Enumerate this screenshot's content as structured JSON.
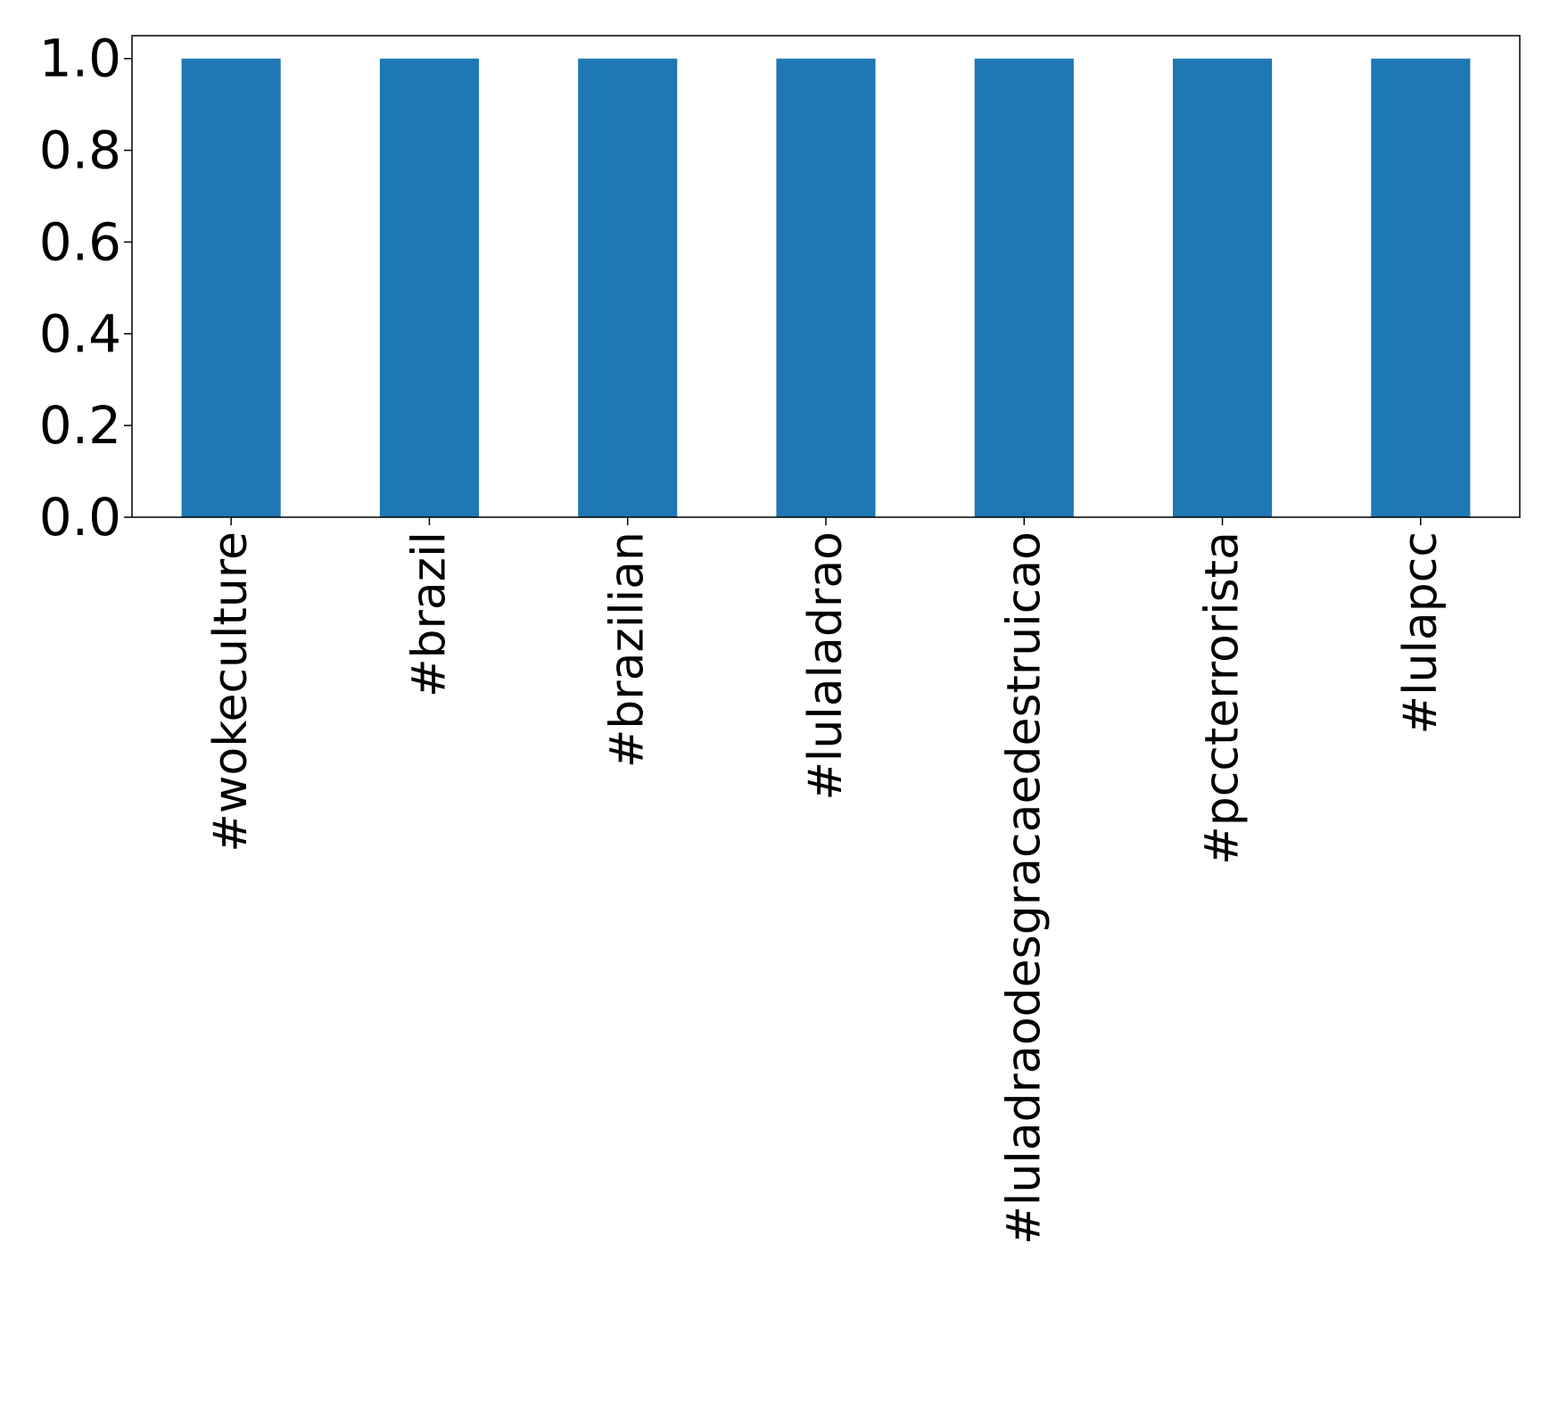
{
  "chart_data": {
    "type": "bar",
    "categories": [
      "#wokeculture",
      "#brazil",
      "#brazilian",
      "#lulaladrao",
      "#luladraodesgracaedestruicao",
      "#pccterrorista",
      "#lulapcc"
    ],
    "values": [
      1.0,
      1.0,
      1.0,
      1.0,
      1.0,
      1.0,
      1.0
    ],
    "yticks": [
      "0.0",
      "0.2",
      "0.4",
      "0.6",
      "0.8",
      "1.0"
    ],
    "ylim": [
      0,
      1.05
    ],
    "grid": false,
    "colors": {
      "bar": "#1f77b4",
      "axis": "#000000"
    }
  }
}
